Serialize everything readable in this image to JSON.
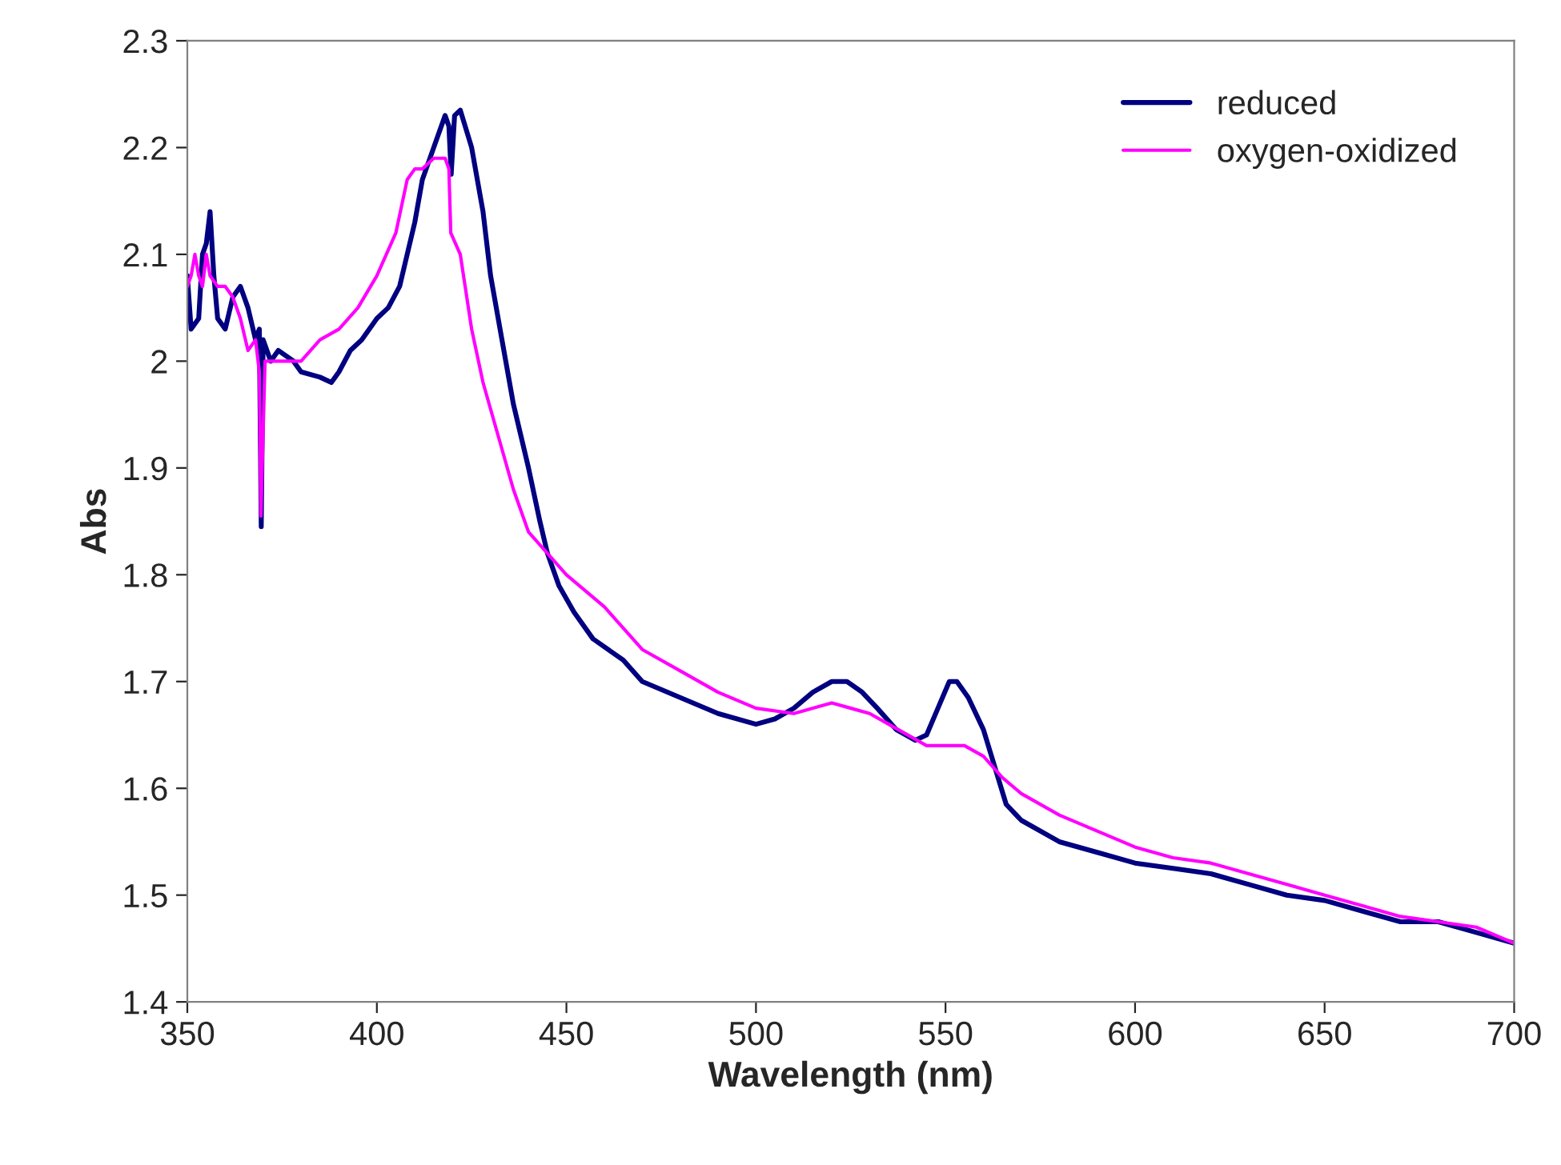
{
  "chart_data": {
    "type": "line",
    "xlabel": "Wavelength (nm)",
    "ylabel": "Abs",
    "xlim": [
      350,
      700
    ],
    "xticks": [
      350,
      400,
      450,
      500,
      550,
      600,
      650,
      700
    ],
    "ylim": [
      1.4,
      2.3
    ],
    "yticks": [
      1.4,
      1.5,
      1.6,
      1.7,
      1.8,
      1.9,
      2,
      2.1,
      2.2,
      2.3
    ],
    "grid": false,
    "legend": "top right",
    "marker": "none",
    "line_style": "solid",
    "series": [
      {
        "name": "reduced",
        "color": "#000080",
        "x": [
          350,
          351,
          353,
          354,
          355,
          356,
          357,
          358,
          360,
          362,
          364,
          366,
          368,
          369,
          369.5,
          370,
          372,
          374,
          378,
          380,
          385,
          388,
          390,
          393,
          396,
          400,
          403,
          406,
          408,
          410,
          412,
          414,
          416,
          418,
          419,
          419.6,
          420.5,
          422,
          425,
          428,
          430,
          433,
          436,
          440,
          443,
          445,
          448,
          452,
          457,
          465,
          470,
          480,
          490,
          500,
          505,
          510,
          515,
          520,
          524,
          528,
          532,
          537,
          542,
          545,
          548,
          551,
          553,
          556,
          560,
          563,
          566,
          570,
          580,
          590,
          600,
          610,
          620,
          630,
          640,
          650,
          660,
          670,
          680,
          690,
          700
        ],
        "values": [
          2.08,
          2.03,
          2.04,
          2.1,
          2.11,
          2.14,
          2.08,
          2.04,
          2.03,
          2.06,
          2.07,
          2.05,
          2.02,
          2.03,
          1.845,
          2.02,
          2.0,
          2.01,
          2.0,
          1.99,
          1.985,
          1.98,
          1.99,
          2.01,
          2.02,
          2.04,
          2.05,
          2.07,
          2.1,
          2.13,
          2.17,
          2.19,
          2.21,
          2.23,
          2.22,
          2.175,
          2.23,
          2.235,
          2.2,
          2.14,
          2.08,
          2.02,
          1.96,
          1.9,
          1.85,
          1.82,
          1.79,
          1.765,
          1.74,
          1.72,
          1.7,
          1.685,
          1.67,
          1.66,
          1.665,
          1.675,
          1.69,
          1.7,
          1.7,
          1.69,
          1.675,
          1.655,
          1.645,
          1.65,
          1.675,
          1.7,
          1.7,
          1.685,
          1.655,
          1.62,
          1.585,
          1.57,
          1.55,
          1.54,
          1.53,
          1.525,
          1.52,
          1.51,
          1.5,
          1.495,
          1.485,
          1.475,
          1.475,
          1.465,
          1.455
        ]
      },
      {
        "name": "oxygen-oxidized",
        "color": "#ff00ff",
        "x": [
          350,
          351,
          352,
          353,
          354,
          355,
          356,
          358,
          360,
          362,
          364,
          366,
          368,
          369,
          369.4,
          370.5,
          375,
          380,
          385,
          390,
          395,
          400,
          405,
          408,
          410,
          412,
          415,
          418,
          419,
          419.5,
          422,
          425,
          428,
          432,
          436,
          440,
          445,
          450,
          460,
          470,
          480,
          490,
          500,
          510,
          520,
          525,
          530,
          535,
          540,
          545,
          555,
          560,
          565,
          570,
          580,
          590,
          600,
          610,
          620,
          630,
          640,
          650,
          660,
          670,
          680,
          690,
          700
        ],
        "values": [
          2.07,
          2.08,
          2.1,
          2.08,
          2.07,
          2.1,
          2.08,
          2.07,
          2.07,
          2.06,
          2.04,
          2.01,
          2.02,
          1.99,
          1.855,
          2.0,
          2.0,
          2.0,
          2.02,
          2.03,
          2.05,
          2.08,
          2.12,
          2.17,
          2.18,
          2.18,
          2.19,
          2.19,
          2.18,
          2.12,
          2.1,
          2.03,
          1.98,
          1.93,
          1.88,
          1.84,
          1.82,
          1.8,
          1.77,
          1.73,
          1.71,
          1.69,
          1.675,
          1.67,
          1.68,
          1.675,
          1.67,
          1.66,
          1.65,
          1.64,
          1.64,
          1.63,
          1.61,
          1.595,
          1.575,
          1.56,
          1.545,
          1.535,
          1.53,
          1.52,
          1.51,
          1.5,
          1.49,
          1.48,
          1.475,
          1.47,
          1.455
        ]
      }
    ]
  }
}
